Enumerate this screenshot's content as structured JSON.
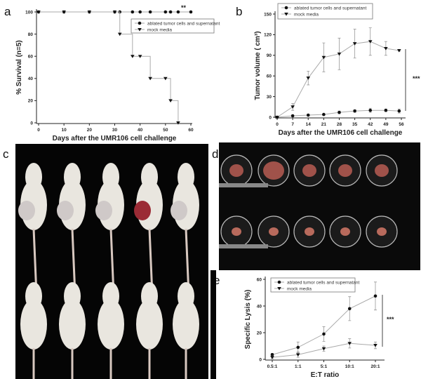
{
  "panel_labels": {
    "a": "a",
    "b": "b",
    "c": "c",
    "d": "d",
    "e": "e"
  },
  "chart_data": [
    {
      "id": "a",
      "type": "line",
      "step": true,
      "xlabel": "Days after the UMR106 cell challenge",
      "ylabel": "% Survival (n=5)",
      "xlim": [
        0,
        60
      ],
      "ylim": [
        0,
        100
      ],
      "xticks": [
        0,
        10,
        20,
        30,
        40,
        50,
        60
      ],
      "yticks": [
        0,
        20,
        40,
        60,
        80,
        100
      ],
      "grid": false,
      "legend_position": "top-right",
      "annotation": "**",
      "series": [
        {
          "name": "ablated tumor cells and supernatant",
          "marker": "circle",
          "x": [
            0,
            10,
            20,
            30,
            32,
            37,
            40,
            44,
            50,
            52,
            55,
            60
          ],
          "y": [
            100,
            100,
            100,
            100,
            100,
            100,
            100,
            100,
            100,
            100,
            100,
            100
          ]
        },
        {
          "name": "mock media",
          "marker": "triangle-down",
          "x": [
            0,
            10,
            20,
            30,
            32,
            37,
            40,
            44,
            50,
            52,
            55
          ],
          "y": [
            100,
            100,
            100,
            100,
            80,
            60,
            60,
            40,
            40,
            20,
            0
          ]
        }
      ]
    },
    {
      "id": "b",
      "type": "line",
      "xlabel": "Days after the UMR106 cell challenge",
      "ylabel": "Tumor volume ( cm³)",
      "xlim": [
        0,
        56
      ],
      "ylim": [
        0,
        150
      ],
      "xticks": [
        0,
        7,
        14,
        21,
        28,
        35,
        42,
        49,
        56
      ],
      "yticks": [
        0,
        30,
        60,
        90,
        120,
        150
      ],
      "grid": false,
      "legend_position": "top-left",
      "annotation": "***",
      "series": [
        {
          "name": "ablated tumor cells and supernatant",
          "marker": "circle",
          "x": [
            0,
            7,
            14,
            21,
            28,
            35,
            42,
            49,
            55
          ],
          "y": [
            0,
            2,
            3,
            4,
            7,
            9,
            10,
            10,
            9
          ],
          "err": [
            0,
            1,
            1,
            1,
            2,
            2,
            3,
            2,
            3
          ]
        },
        {
          "name": "mock media",
          "marker": "triangle-down",
          "x": [
            0,
            7,
            14,
            21,
            28,
            35,
            42,
            49,
            55
          ],
          "y": [
            0,
            15,
            57,
            87,
            92,
            107,
            110,
            100,
            97
          ],
          "err": [
            0,
            5,
            10,
            21,
            23,
            21,
            20,
            10,
            1
          ]
        }
      ]
    },
    {
      "id": "e",
      "type": "line",
      "xlabel": "E:T ratio",
      "ylabel": "Specific Lysis (%)",
      "categories": [
        "0.5:1",
        "1:1",
        "5:1",
        "10:1",
        "20:1"
      ],
      "ylim": [
        0,
        60
      ],
      "yticks": [
        0,
        20,
        40,
        60
      ],
      "grid": false,
      "legend_position": "top-left",
      "annotation": "***",
      "series": [
        {
          "name": "ablated tumor cells and supernatant",
          "marker": "circle",
          "y": [
            3.5,
            9,
            19,
            38,
            47.5
          ],
          "err": [
            1,
            4,
            5.5,
            9,
            10.5
          ]
        },
        {
          "name": "mock media",
          "marker": "triangle-down",
          "y": [
            1.5,
            3.5,
            8,
            12,
            10.5
          ],
          "err": [
            1,
            2,
            2,
            3.5,
            2.5
          ]
        }
      ]
    }
  ],
  "colors": {
    "line": "#aaaaaa",
    "marker": "#111111",
    "photo_bg": "#050505",
    "rat": "#e9e6df",
    "tumor": "#9b2b35"
  }
}
